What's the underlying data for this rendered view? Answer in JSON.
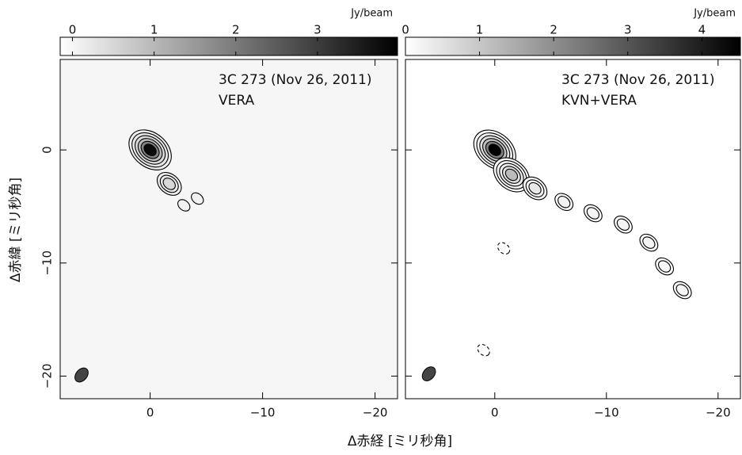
{
  "chart_data": [
    {
      "type": "contour",
      "title": "3C 273 (Nov 26, 2011)",
      "subtitle": "VERA",
      "xlabel": "Δ赤経 [ミリ秒角]",
      "ylabel": "Δ赤緯 [ミリ秒角]",
      "xlim": [
        8,
        -22
      ],
      "ylim": [
        -22,
        8
      ],
      "xticks": [
        0,
        {
          "value": -10,
          "label": "−10"
        },
        {
          "value": -20,
          "label": "−20"
        }
      ],
      "yticks": [
        0,
        {
          "value": -10,
          "label": "−10"
        },
        {
          "value": -20,
          "label": "−20"
        }
      ],
      "clabel": "Jy/beam",
      "clim": [
        -0.15,
        3.98
      ],
      "cticks": [
        0,
        1,
        2,
        3
      ],
      "components": [
        {
          "x": 0,
          "y": 0,
          "peak": 3.8
        },
        {
          "x": -1.7,
          "y": -3,
          "peak": 0.5
        },
        {
          "x": -3,
          "y": -4.9,
          "peak": 0.08
        },
        {
          "x": -4.2,
          "y": -4.3,
          "peak": 0.07
        }
      ],
      "beam": {
        "x": 6.1,
        "y": -19.9
      }
    },
    {
      "type": "contour",
      "title": "3C 273 (Nov 26, 2011)",
      "subtitle": "KVN+VERA",
      "xlim": [
        8,
        -22
      ],
      "ylim": [
        -22,
        8
      ],
      "xticks": [
        0,
        {
          "value": -10,
          "label": "−10"
        },
        {
          "value": -20,
          "label": "−20"
        }
      ],
      "yticks": [
        0,
        {
          "value": -10,
          "label": "−10"
        },
        {
          "value": -20,
          "label": "−20"
        }
      ],
      "clabel": "Jy/beam",
      "clim": [
        0,
        4.52
      ],
      "cticks": [
        0,
        1,
        2,
        3,
        4
      ],
      "components": [
        {
          "x": 0,
          "y": 0,
          "peak": 4.5
        },
        {
          "x": -1.5,
          "y": -2.2,
          "peak": 1.2
        },
        {
          "x": -3.6,
          "y": -3.4,
          "peak": 0.4
        },
        {
          "x": -6.2,
          "y": -4.6,
          "peak": 0.2
        },
        {
          "x": -8.8,
          "y": -5.6,
          "peak": 0.18
        },
        {
          "x": -11.5,
          "y": -6.6,
          "peak": 0.2
        },
        {
          "x": -13.8,
          "y": -8.2,
          "peak": 0.2
        },
        {
          "x": -15.2,
          "y": -10.3,
          "peak": 0.15
        },
        {
          "x": -16.8,
          "y": -12.4,
          "peak": 0.2
        },
        {
          "x": -0.8,
          "y": -8.7,
          "peak": -0.06
        },
        {
          "x": 1,
          "y": -17.7,
          "peak": -0.06
        }
      ],
      "beam": {
        "x": 5.9,
        "y": -19.8
      }
    }
  ]
}
